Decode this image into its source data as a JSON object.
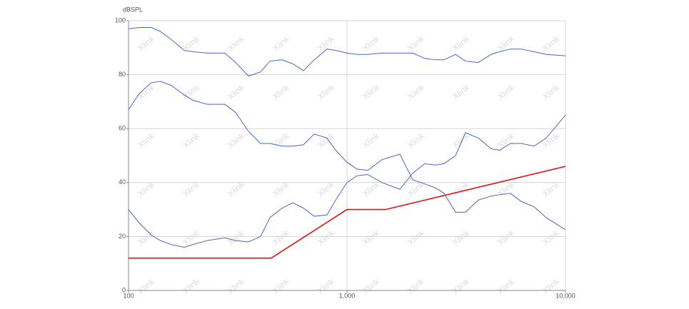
{
  "chart_data": {
    "type": "line",
    "y_label": "dBSPL",
    "watermark": "Xlink",
    "x_log": true,
    "grid": true,
    "xlim": [
      100,
      10000
    ],
    "xticks": [
      100,
      {
        "value": 1000,
        "label": "1,000"
      },
      {
        "value": 10000,
        "label": "10,000"
      }
    ],
    "ylim": [
      0,
      100
    ],
    "yticks": [
      0,
      20,
      40,
      60,
      80,
      100
    ],
    "series": [
      {
        "color": "#4a66c0",
        "x": [
          100,
          112,
          127,
          140,
          157,
          180,
          197,
          229,
          276,
          309,
          354,
          402,
          444,
          504,
          565,
          632,
          708,
          810,
          887,
          1000,
          1111,
          1244,
          1446,
          1746,
          2000,
          2270,
          2543,
          2782,
          3140,
          3485,
          3990,
          4571,
          5003,
          5600,
          6270,
          7180,
          8165,
          10000
        ],
        "values": [
          97,
          97.5,
          97.5,
          96,
          93,
          89,
          88.5,
          88,
          88,
          84.5,
          79.5,
          81,
          85,
          85.5,
          84,
          81.5,
          85.5,
          89.5,
          89,
          88,
          87.5,
          87.5,
          88,
          88,
          88,
          86,
          85.5,
          85.5,
          87.5,
          85,
          84.5,
          87.5,
          88.5,
          89.5,
          89.5,
          88.5,
          87.5,
          87
        ]
      },
      {
        "color": "#4a66c0",
        "x": [
          100,
          112,
          127,
          140,
          157,
          180,
          197,
          229,
          276,
          309,
          354,
          402,
          444,
          504,
          565,
          632,
          708,
          810,
          887,
          1000,
          1111,
          1244,
          1446,
          1746,
          2000,
          2270,
          2543,
          2782,
          3140,
          3485,
          3990,
          4571,
          5003,
          5600,
          6270,
          7180,
          8165,
          10000
        ],
        "values": [
          67,
          73,
          77,
          77.5,
          76,
          72.5,
          70.5,
          69,
          69,
          66,
          59,
          54.5,
          54.5,
          53.5,
          53.5,
          54,
          58,
          56.5,
          52,
          47.5,
          45,
          44.5,
          48.5,
          50.5,
          41,
          39.5,
          38,
          36,
          29,
          29,
          33.5,
          35,
          35.5,
          36,
          33,
          31,
          27,
          22.5
        ]
      },
      {
        "color": "#4a66c0",
        "x": [
          100,
          112,
          127,
          140,
          157,
          180,
          197,
          229,
          276,
          309,
          354,
          402,
          444,
          504,
          565,
          632,
          708,
          810,
          887,
          1000,
          1111,
          1244,
          1446,
          1746,
          2000,
          2270,
          2543,
          2782,
          3140,
          3485,
          3990,
          4571,
          5003,
          5600,
          6270,
          7180,
          8165,
          10000
        ],
        "values": [
          30,
          25,
          20.5,
          18.5,
          17,
          16,
          17,
          18.5,
          19.5,
          18.5,
          18,
          20,
          27,
          30.5,
          32.5,
          30.5,
          27.5,
          28,
          33.5,
          40,
          42.5,
          43,
          40,
          37.5,
          43.5,
          47,
          46.5,
          47,
          50,
          58.5,
          56.5,
          52.5,
          52,
          54.5,
          54.5,
          53.5,
          56.5,
          65
        ]
      },
      {
        "color": "#e01010",
        "x": [
          100,
          450,
          1000,
          1500,
          10000
        ],
        "values": [
          12,
          12,
          30,
          30,
          46
        ]
      }
    ]
  }
}
